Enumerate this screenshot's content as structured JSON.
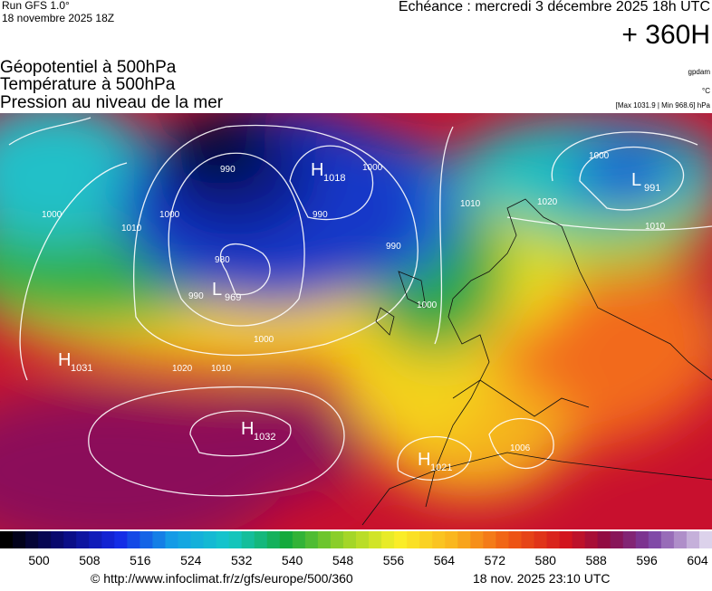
{
  "header": {
    "run": "Run GFS 1.0°",
    "run_date": "18 novembre 2025 18Z",
    "valid": "Echéance : mercredi 3 décembre 2025 18h UTC",
    "lead": "+ 360H",
    "titles": [
      "Géopotentiel à 500hPa",
      "Température à 500hPa",
      "Pression au niveau de la mer"
    ],
    "units": [
      "gpdam",
      "°C",
      "[Max 1031.9 | Min 968.6] hPa"
    ]
  },
  "centers": [
    {
      "letter": "H",
      "value": "1018"
    },
    {
      "letter": "L",
      "value": "969"
    },
    {
      "letter": "H",
      "value": "1031"
    },
    {
      "letter": "H",
      "value": "1032"
    },
    {
      "letter": "H",
      "value": "1021"
    },
    {
      "letter": "L",
      "value": "991"
    }
  ],
  "isobar_labels": [
    "990",
    "1000",
    "1000",
    "990",
    "1000",
    "980",
    "990",
    "1010",
    "1020",
    "1010",
    "1000",
    "990",
    "1000",
    "1010",
    "1020",
    "1006",
    "1000",
    "1010"
  ],
  "colorbar": {
    "labels": [
      "500",
      "508",
      "516",
      "524",
      "532",
      "540",
      "548",
      "556",
      "564",
      "572",
      "580",
      "588",
      "596",
      "604"
    ]
  },
  "footer": {
    "url": "© http://www.infoclimat.fr/z/gfs/europe/500/360",
    "timestamp": "18 nov. 2025 23:10 UTC"
  }
}
